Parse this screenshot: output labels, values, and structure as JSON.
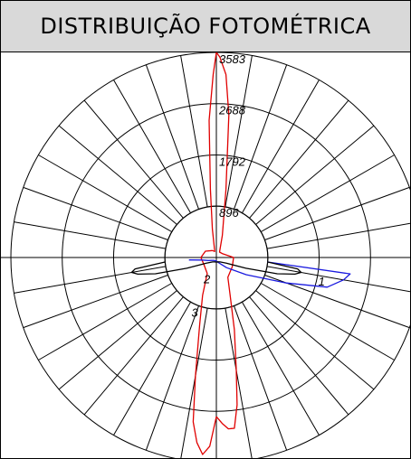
{
  "header": {
    "title": "DISTRIBUIÇÃO FOTOMÉTRICA"
  },
  "colors": {
    "grid": "#000000",
    "curve_3": "#e00000",
    "curve_1": "#1a1adf",
    "curve_2": "#000000",
    "header_bg": "#d9d9d9"
  },
  "chart_data": {
    "type": "polar",
    "title": "DISTRIBUIÇÃO FOTOMÉTRICA",
    "radial_ticks": [
      "896",
      "1792",
      "2688",
      "3583"
    ],
    "radial_tick_values": [
      896,
      1792,
      2688,
      3583
    ],
    "rmax": 3583,
    "angular_step_deg": 10,
    "zero_direction": "top",
    "series": [
      {
        "name": "3",
        "color": "#e00000",
        "angle_deg": [
          -180,
          -178,
          -176,
          -174,
          -172,
          -170,
          -166,
          -160,
          -150,
          -120,
          -90,
          -60,
          -30,
          -15,
          -8,
          -5,
          -3,
          -1,
          0,
          1,
          3,
          5,
          8,
          15,
          30,
          60,
          90,
          120,
          150,
          160,
          166,
          170,
          172,
          174,
          176,
          178,
          180
        ],
        "values": [
          2780,
          3300,
          3450,
          3250,
          2900,
          2100,
          1200,
          700,
          320,
          250,
          270,
          220,
          140,
          110,
          500,
          1200,
          2400,
          3200,
          3583,
          3500,
          3200,
          2500,
          1200,
          400,
          110,
          130,
          300,
          320,
          400,
          700,
          1300,
          2000,
          2600,
          3000,
          3000,
          2900,
          2780
        ]
      },
      {
        "name": "1",
        "color": "#1a1adf",
        "angle_deg": [
          -95,
          -100,
          -110,
          -120,
          -135,
          -150,
          -165,
          -180,
          180,
          165,
          150,
          135,
          120,
          110,
          105,
          100,
          97,
          95
        ],
        "values": [
          480,
          250,
          150,
          100,
          70,
          60,
          60,
          60,
          60,
          80,
          120,
          250,
          600,
          1300,
          2000,
          2250,
          2350,
          900
        ]
      },
      {
        "name": "2",
        "color": "#000000",
        "angle_deg": [
          -95,
          -98,
          -100,
          -102,
          -105,
          -110,
          -120,
          -140,
          -160,
          -180,
          180,
          160,
          140,
          120,
          110,
          105,
          102,
          100,
          98,
          95
        ],
        "values": [
          900,
          1430,
          1500,
          1400,
          1100,
          550,
          200,
          100,
          80,
          80,
          80,
          80,
          100,
          200,
          550,
          1100,
          1400,
          1500,
          1430,
          900
        ]
      }
    ],
    "curve_labels": [
      "1",
      "2",
      "3"
    ]
  }
}
